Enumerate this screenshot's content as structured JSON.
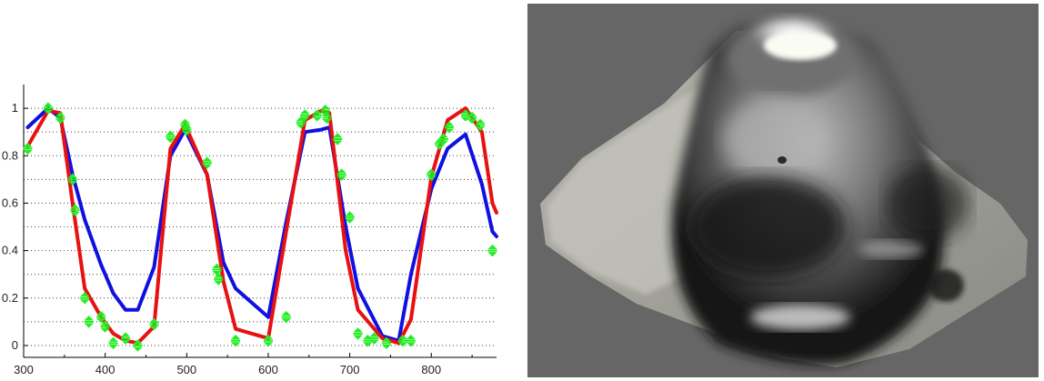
{
  "chart_data": {
    "type": "line",
    "title": "",
    "xlabel": "",
    "ylabel": "",
    "xlim": [
      300,
      880
    ],
    "ylim": [
      -0.05,
      1.1
    ],
    "x_ticks": [
      300,
      400,
      500,
      600,
      700,
      800
    ],
    "x_tick_labels": [
      "300",
      "400",
      "500",
      "600",
      "700",
      "800"
    ],
    "y_ticks": [
      0,
      0.2,
      0.4,
      0.6,
      0.8,
      1
    ],
    "y_tick_labels": [
      "0",
      "0.2",
      "0.4",
      "0.6",
      "0.8",
      "1"
    ],
    "grid": "dotted horizontal",
    "series": [
      {
        "color": "#1010e0",
        "kind": "line",
        "x": [
          305,
          330,
          345,
          360,
          375,
          395,
          410,
          425,
          440,
          460,
          480,
          498,
          525,
          545,
          560,
          580,
          600,
          622,
          645,
          665,
          675,
          695,
          710,
          740,
          760,
          775,
          800,
          820,
          842,
          862,
          875,
          880
        ],
        "y": [
          0.92,
          1.0,
          0.96,
          0.72,
          0.53,
          0.34,
          0.22,
          0.15,
          0.15,
          0.33,
          0.8,
          0.91,
          0.72,
          0.35,
          0.24,
          0.18,
          0.12,
          0.52,
          0.9,
          0.91,
          0.92,
          0.5,
          0.24,
          0.04,
          0.02,
          0.3,
          0.66,
          0.83,
          0.89,
          0.68,
          0.48,
          0.46
        ]
      },
      {
        "color": "#e81010",
        "kind": "line",
        "x": [
          305,
          330,
          345,
          360,
          375,
          395,
          410,
          425,
          440,
          460,
          480,
          498,
          525,
          545,
          560,
          580,
          600,
          622,
          645,
          665,
          675,
          695,
          710,
          740,
          760,
          775,
          800,
          820,
          842,
          862,
          875,
          880
        ],
        "y": [
          0.84,
          0.99,
          0.98,
          0.6,
          0.24,
          0.12,
          0.05,
          0.02,
          0.01,
          0.08,
          0.83,
          0.93,
          0.72,
          0.27,
          0.07,
          0.05,
          0.03,
          0.48,
          0.95,
          0.99,
          0.98,
          0.4,
          0.15,
          0.03,
          0.01,
          0.11,
          0.71,
          0.95,
          1.0,
          0.9,
          0.6,
          0.56
        ]
      },
      {
        "color": "#22ee22",
        "kind": "markers",
        "x": [
          305,
          330,
          345,
          360,
          363,
          375,
          380,
          395,
          400,
          410,
          425,
          440,
          460,
          480,
          498,
          500,
          525,
          537,
          539,
          560,
          600,
          622,
          640,
          645,
          660,
          670,
          672,
          685,
          690,
          700,
          710,
          722,
          730,
          745,
          765,
          775,
          800,
          810,
          815,
          822,
          842,
          850,
          860,
          875
        ],
        "y": [
          0.83,
          1.0,
          0.96,
          0.7,
          0.57,
          0.2,
          0.1,
          0.12,
          0.08,
          0.01,
          0.03,
          0.0,
          0.09,
          0.88,
          0.93,
          0.91,
          0.77,
          0.32,
          0.28,
          0.02,
          0.02,
          0.12,
          0.94,
          0.97,
          0.97,
          0.99,
          0.96,
          0.87,
          0.72,
          0.54,
          0.05,
          0.02,
          0.03,
          0.01,
          0.02,
          0.02,
          0.72,
          0.85,
          0.87,
          0.92,
          0.97,
          0.96,
          0.93,
          0.4
        ]
      }
    ]
  },
  "image": {
    "background": "#666666",
    "description_icon": "ultrasound-scan-image"
  }
}
